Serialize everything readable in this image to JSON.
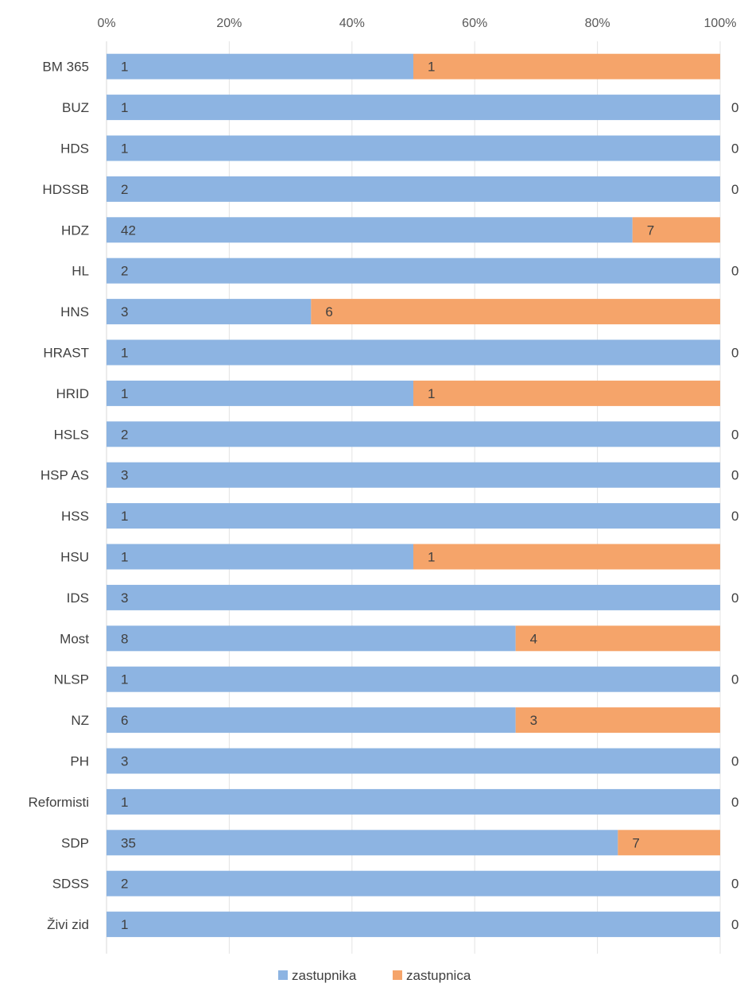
{
  "chart_data": {
    "type": "bar",
    "orientation": "horizontal",
    "stacked": "percent",
    "title": "",
    "xlabel": "",
    "ylabel": "",
    "xlim": [
      0,
      100
    ],
    "x_ticks": [
      "0%",
      "20%",
      "40%",
      "60%",
      "80%",
      "100%"
    ],
    "x_axis_position": "top",
    "grid": true,
    "legend_position": "bottom",
    "categories": [
      "BM 365",
      "BUZ",
      "HDS",
      "HDSSB",
      "HDZ",
      "HL",
      "HNS",
      "HRAST",
      "HRID",
      "HSLS",
      "HSP AS",
      "HSS",
      "HSU",
      "IDS",
      "Most",
      "NLSP",
      "NZ",
      "PH",
      "Reformisti",
      "SDP",
      "SDSS",
      "Živi zid"
    ],
    "series": [
      {
        "name": "zastupnika",
        "color": "#8db4e2",
        "values": [
          1,
          1,
          1,
          2,
          42,
          2,
          3,
          1,
          1,
          2,
          3,
          1,
          1,
          3,
          8,
          1,
          6,
          3,
          1,
          35,
          2,
          1
        ]
      },
      {
        "name": "zastupnica",
        "color": "#f5a46a",
        "values": [
          1,
          0,
          0,
          0,
          7,
          0,
          6,
          0,
          1,
          0,
          0,
          0,
          1,
          0,
          4,
          0,
          3,
          0,
          0,
          7,
          0,
          0
        ]
      }
    ],
    "zero_labels_shown": [
      "BUZ",
      "HDS",
      "HDSSB",
      "HL",
      "HRAST",
      "HSLS",
      "HSP AS",
      "HSS",
      "IDS",
      "NLSP",
      "PH",
      "Reformisti",
      "SDSS",
      "Živi zid"
    ]
  }
}
